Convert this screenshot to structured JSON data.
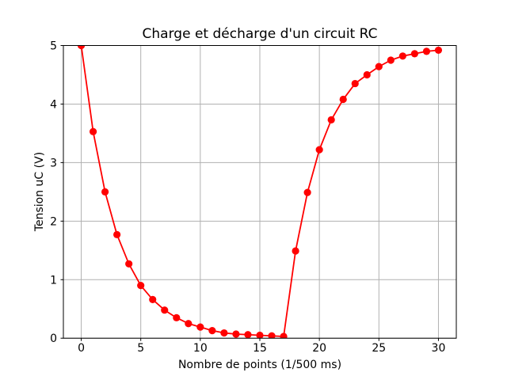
{
  "figure": {
    "background": "#ffffff"
  },
  "chart_data": {
    "type": "line",
    "title": "Charge et décharge d'un circuit RC",
    "xlabel": "Nombre de points (1/500 ms)",
    "ylabel": "Tension uC (V)",
    "x": [
      0,
      1,
      2,
      3,
      4,
      5,
      6,
      7,
      8,
      9,
      10,
      11,
      12,
      13,
      14,
      15,
      16,
      17,
      18,
      19,
      20,
      21,
      22,
      23,
      24,
      25,
      26,
      27,
      28,
      29,
      30
    ],
    "series": [
      {
        "name": "uC",
        "color": "#ff0000",
        "marker": "circle",
        "values": [
          5.0,
          3.53,
          2.5,
          1.77,
          1.27,
          0.9,
          0.66,
          0.48,
          0.35,
          0.25,
          0.19,
          0.13,
          0.09,
          0.07,
          0.06,
          0.05,
          0.04,
          0.03,
          1.49,
          2.49,
          3.22,
          3.73,
          4.08,
          4.35,
          4.5,
          4.64,
          4.75,
          4.82,
          4.86,
          4.9,
          4.92
        ]
      }
    ],
    "xlim": [
      -1.5,
      31.5
    ],
    "ylim": [
      0,
      5
    ],
    "xticks": [
      0,
      5,
      10,
      15,
      20,
      25,
      30
    ],
    "yticks": [
      0,
      1,
      2,
      3,
      4,
      5
    ],
    "grid": true,
    "grid_color": "#b0b0b0",
    "axes_color": "#000000",
    "plot_background": "#ffffff",
    "legend": null
  }
}
